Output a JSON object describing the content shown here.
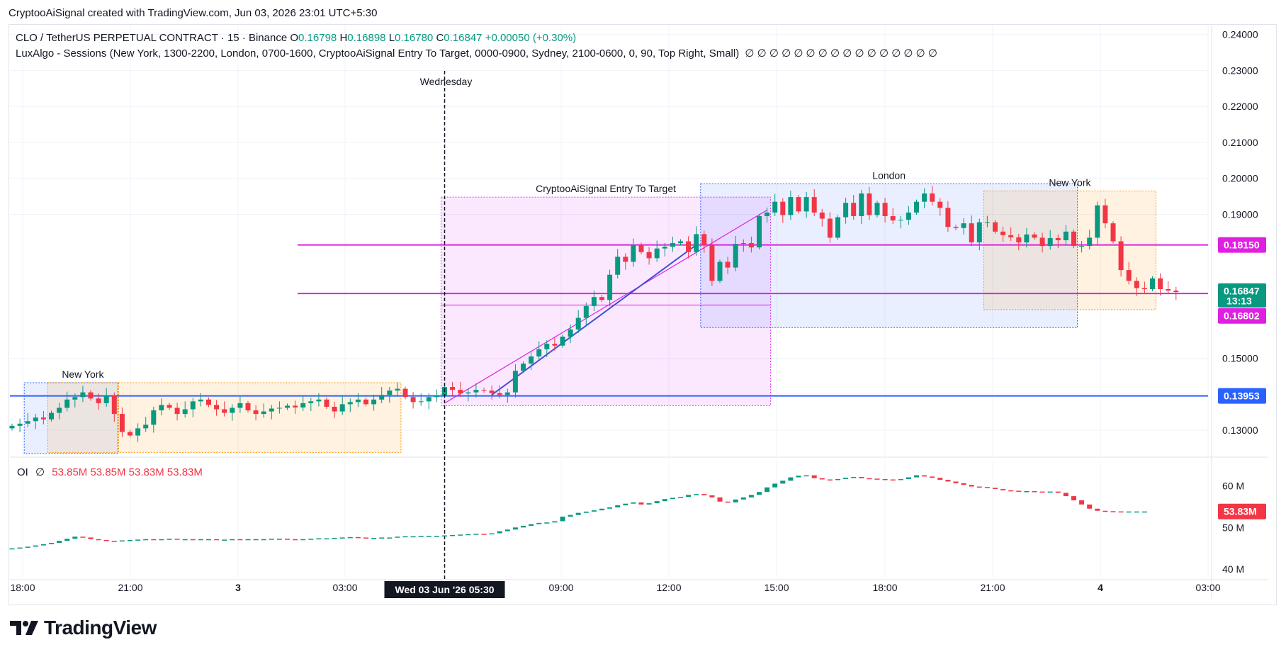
{
  "header": {
    "credit": "CryptooAiSignal created with TradingView.com, Jun 03, 2026 23:01 UTC+5:30"
  },
  "legend": {
    "symbol": "CLO / TetherUS PERPETUAL CONTRACT · 15 · Binance",
    "o_label": "O",
    "o_value": "0.16798",
    "h_label": "H",
    "h_value": "0.16898",
    "l_label": "L",
    "l_value": "0.16780",
    "c_label": "C",
    "c_value": "0.16847",
    "change": "+0.00050 (+0.30%)",
    "indicator": "LuxAlgo - Sessions (New York, 1300-2200, London, 0700-1600, CryptooAiSignal  Entry To Target, 0000-0900, Sydney, 2100-0600, 0, 90, Top Right, Small)",
    "indicator_values": "∅  ∅  ∅  ∅  ∅  ∅  ∅  ∅  ∅  ∅  ∅  ∅  ∅  ∅  ∅  ∅",
    "oi_name": "OI",
    "oi_symbol": "∅",
    "oi_values": "53.85M  53.85M  53.83M  53.83M"
  },
  "logo": {
    "text": "TradingView"
  },
  "colors": {
    "up": "#089981",
    "down": "#f23645",
    "magenta": "#e020e0",
    "blue": "#2962ff",
    "trend": "#3f51d8",
    "current_tag": "#089981"
  },
  "chart_data": [
    {
      "type": "candlestick",
      "title": "CLO / TetherUS PERPETUAL CONTRACT · 15 · Binance",
      "ylim": [
        0.1225,
        0.2425
      ],
      "y_ticks": [
        "0.24000",
        "0.23000",
        "0.22000",
        "0.21000",
        "0.20000",
        "0.19000",
        "0.15000",
        "0.13000"
      ],
      "x_ticks": [
        "18:00",
        "21:00",
        "3",
        "03:00",
        "09:00",
        "12:00",
        "15:00",
        "18:00",
        "21:00",
        "4",
        "03:00"
      ],
      "crosshair_label": "Wed 03 Jun '26   05:30",
      "day_label": "Wednesday",
      "sessions": [
        {
          "name": "New York",
          "color": "#ff9800"
        },
        {
          "name": "CryptooAiSignal  Entry To Target",
          "color": "#e040fb"
        },
        {
          "name": "London",
          "color": "#2962ff"
        },
        {
          "name": "New York",
          "color": "#ff9800"
        }
      ],
      "levels": [
        {
          "value": 0.1815,
          "label": "0.18150",
          "color": "#e020e0"
        },
        {
          "value": 0.16847,
          "label": "0.16847",
          "countdown": "13:13",
          "color": "#089981"
        },
        {
          "value": 0.16802,
          "label": "0.16802",
          "color": "#e020e0"
        },
        {
          "value": 0.13953,
          "label": "0.13953",
          "color": "#2962ff"
        }
      ],
      "close_series": [
        0.1312,
        0.1318,
        0.1325,
        0.1335,
        0.133,
        0.1348,
        0.1362,
        0.1385,
        0.1392,
        0.1405,
        0.1388,
        0.1375,
        0.1395,
        0.1345,
        0.1295,
        0.1285,
        0.1305,
        0.1315,
        0.1355,
        0.137,
        0.1362,
        0.1345,
        0.1358,
        0.138,
        0.1385,
        0.137,
        0.1358,
        0.1348,
        0.1362,
        0.1375,
        0.1355,
        0.1345,
        0.1352,
        0.136,
        0.1362,
        0.1368,
        0.1363,
        0.1375,
        0.138,
        0.1385,
        0.1365,
        0.1352,
        0.1372,
        0.1378,
        0.1385,
        0.1372,
        0.1385,
        0.1398,
        0.141,
        0.1415,
        0.1392,
        0.1378,
        0.138,
        0.1392,
        0.1395,
        0.142,
        0.1412,
        0.1402,
        0.1405,
        0.1412,
        0.141,
        0.1403,
        0.1398,
        0.1405,
        0.1465,
        0.1485,
        0.1505,
        0.1525,
        0.154,
        0.1535,
        0.156,
        0.158,
        0.1612,
        0.1645,
        0.167,
        0.1662,
        0.1732,
        0.1782,
        0.1768,
        0.1815,
        0.1795,
        0.1778,
        0.1805,
        0.181,
        0.182,
        0.1825,
        0.1795,
        0.1845,
        0.1815,
        0.1715,
        0.1768,
        0.1752,
        0.1818,
        0.182,
        0.1808,
        0.1895,
        0.1905,
        0.1935,
        0.1898,
        0.1948,
        0.1908,
        0.1948,
        0.1905,
        0.1888,
        0.1835,
        0.1892,
        0.1932,
        0.1895,
        0.1958,
        0.1898,
        0.1932,
        0.1895,
        0.1883,
        0.1885,
        0.1905,
        0.1935,
        0.1958,
        0.1935,
        0.1918,
        0.1865,
        0.1862,
        0.1875,
        0.1822,
        0.1878,
        0.1878,
        0.1852,
        0.1842,
        0.1836,
        0.1822,
        0.1844,
        0.1835,
        0.1812,
        0.1834,
        0.1828,
        0.1852,
        0.1812,
        0.1812,
        0.1835,
        0.1925,
        0.1875,
        0.1825,
        0.1745,
        0.1715,
        0.1695,
        0.1692,
        0.1722,
        0.1692,
        0.1688,
        0.1684
      ],
      "open_first": 0.1305
    },
    {
      "type": "bar",
      "title": "OI",
      "unit": "M",
      "ylim": [
        38,
        66
      ],
      "y_ticks": [
        "60 M",
        "50 M",
        "40 M"
      ],
      "last_label": "53.83M",
      "values": [
        45.0,
        45.2,
        45.4,
        45.7,
        46.0,
        46.3,
        46.8,
        47.3,
        47.8,
        47.6,
        47.2,
        47.0,
        46.8,
        46.7,
        46.9,
        47.0,
        47.1,
        47.2,
        47.1,
        47.2,
        47.3,
        47.2,
        47.2,
        47.1,
        47.2,
        47.2,
        47.1,
        47.1,
        47.2,
        47.1,
        47.2,
        47.2,
        47.2,
        47.3,
        47.3,
        47.2,
        47.1,
        47.2,
        47.3,
        47.4,
        47.4,
        47.5,
        47.6,
        47.7,
        47.6,
        47.5,
        47.5,
        47.6,
        47.6,
        47.8,
        47.9,
        47.9,
        48.0,
        48.0,
        48.0,
        48.1,
        48.2,
        48.3,
        48.4,
        48.5,
        48.4,
        48.6,
        49.1,
        49.5,
        50.0,
        50.4,
        50.8,
        51.1,
        51.2,
        51.5,
        52.6,
        53.0,
        53.5,
        53.8,
        54.1,
        54.5,
        54.8,
        55.3,
        55.7,
        56.0,
        55.5,
        55.8,
        56.3,
        56.8,
        57.1,
        57.3,
        57.8,
        58.0,
        57.7,
        57.2,
        56.2,
        56.0,
        56.7,
        57.2,
        57.8,
        58.5,
        59.6,
        60.5,
        61.2,
        62.0,
        62.4,
        62.5,
        61.8,
        61.5,
        61.4,
        61.6,
        61.9,
        62.1,
        61.8,
        61.7,
        61.6,
        61.5,
        61.4,
        61.6,
        62.0,
        62.5,
        62.2,
        61.9,
        61.4,
        61.0,
        60.6,
        60.2,
        59.8,
        59.7,
        59.5,
        59.2,
        58.9,
        58.8,
        58.7,
        58.7,
        58.6,
        58.5,
        58.6,
        58.3,
        57.5,
        56.5,
        55.5,
        54.5,
        54.0,
        53.9,
        53.85,
        53.83,
        53.83,
        53.83,
        53.83
      ]
    }
  ]
}
